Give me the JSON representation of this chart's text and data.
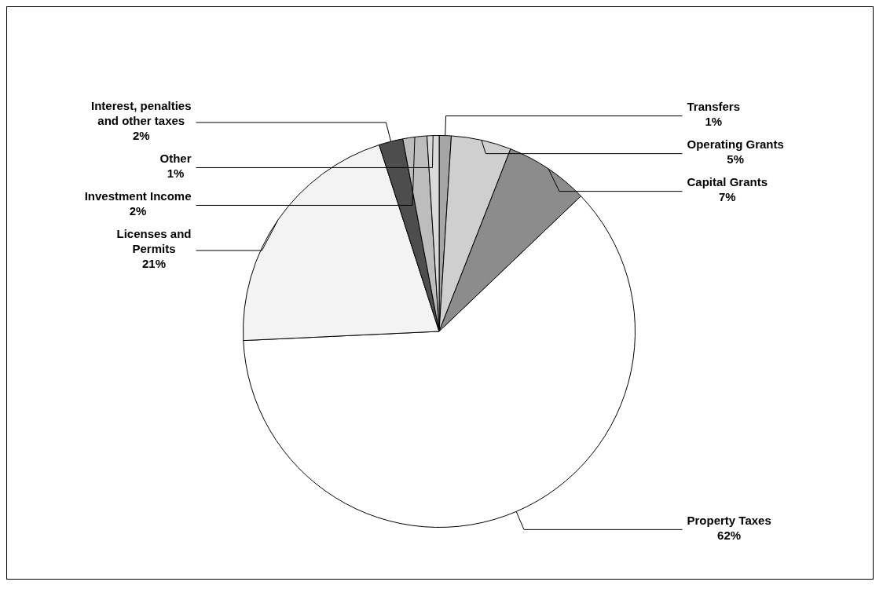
{
  "chart_data": {
    "type": "pie",
    "categories": [
      "Transfers",
      "Operating Grants",
      "Capital Grants",
      "Property Taxes",
      "Licenses and Permits",
      "Interest, penalties and other taxes",
      "Investment Income",
      "Other"
    ],
    "values": [
      1,
      5,
      7,
      62,
      21,
      2,
      2,
      1
    ],
    "value_labels": [
      "1%",
      "5%",
      "7%",
      "62%",
      "21%",
      "2%",
      "2%",
      "1%"
    ],
    "colors": [
      "#a6a6a6",
      "#cfcfcf",
      "#8c8c8c",
      "#ffffff",
      "#f3f3f3",
      "#4d4d4d",
      "#bdbdbd",
      "#d9d9d9"
    ],
    "legend": false
  }
}
